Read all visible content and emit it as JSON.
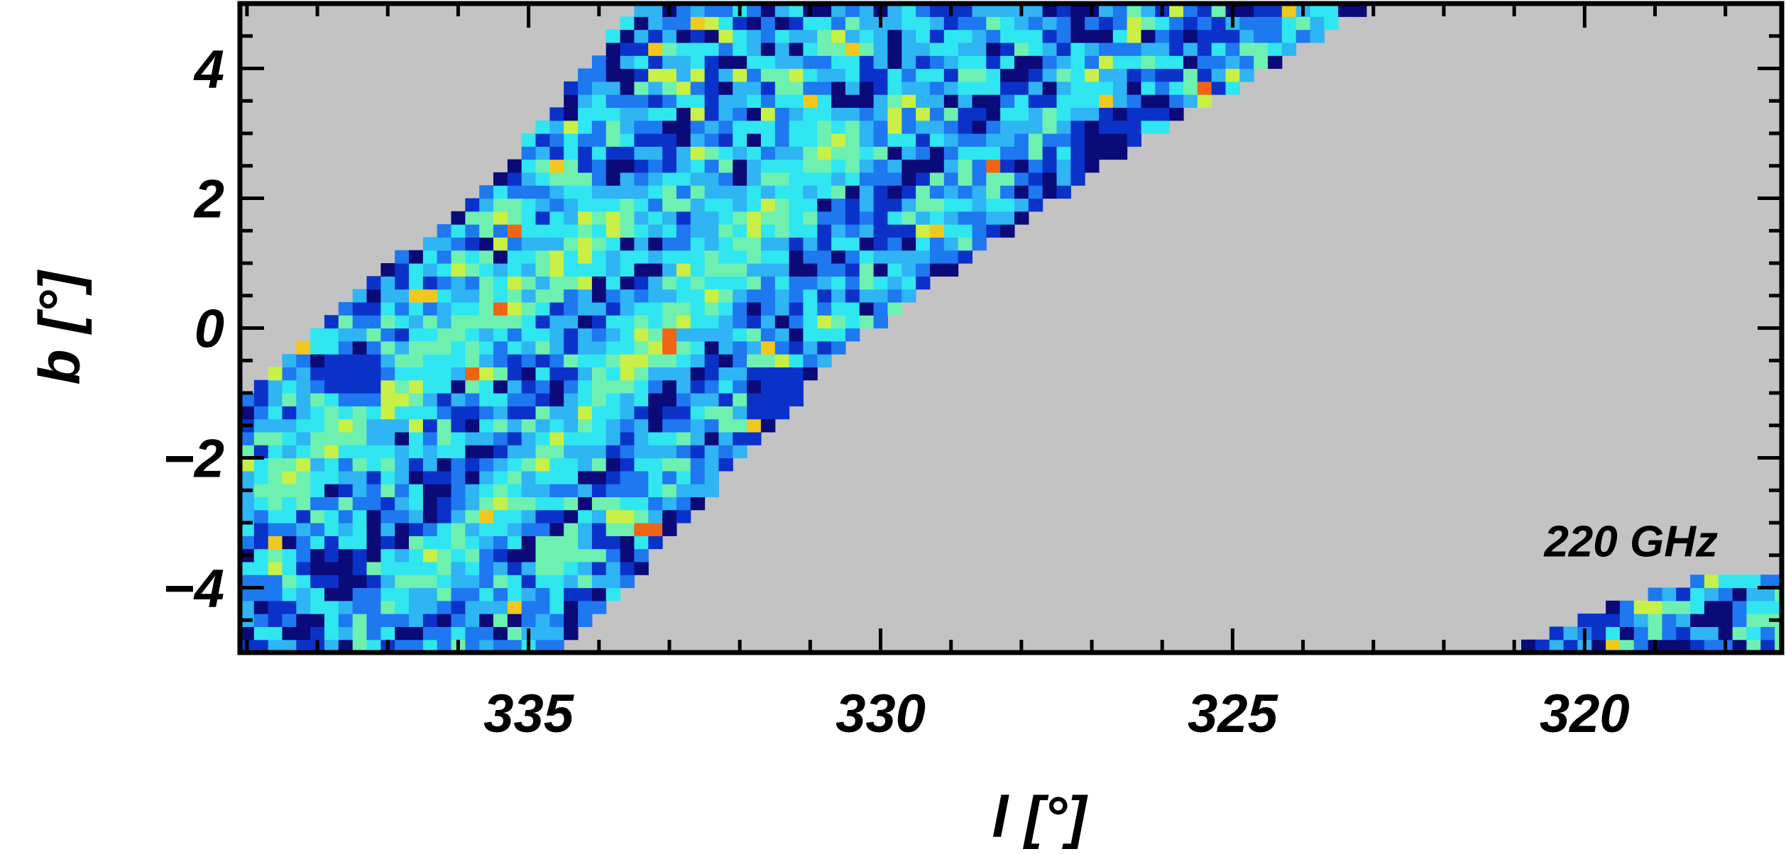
{
  "chart_data": {
    "type": "heatmap",
    "title": "",
    "annotation": "220 GHz",
    "xlabel": "l [°]",
    "ylabel": "b [°]",
    "xlim": [
      339.1,
      317.2
    ],
    "ylim": [
      -5,
      5
    ],
    "x_reversed": true,
    "x_ticks": [
      335,
      330,
      325,
      320
    ],
    "y_ticks": [
      4,
      2,
      0,
      -2,
      -4
    ],
    "x_tick_labels": [
      "335",
      "330",
      "325",
      "320"
    ],
    "y_tick_labels": [
      "4",
      "2",
      "0",
      "−2",
      "−4"
    ],
    "grid": false,
    "mask_color": "#c3c3c3",
    "colormap": [
      "#0a0a78",
      "#0a32c8",
      "#1e78f0",
      "#2fb4f4",
      "#30e6f0",
      "#6ef0b0",
      "#c8f046",
      "#f0c81e",
      "#f06414"
    ],
    "coverage": [
      {
        "name": "main-strip",
        "polygon": [
          [
            339.1,
            -5
          ],
          [
            339.1,
            -1.0
          ],
          [
            335.5,
            2.3
          ],
          [
            333.5,
            4.9
          ],
          [
            323.0,
            5.0
          ],
          [
            327.0,
            2.4
          ],
          [
            330.5,
            -0.3
          ],
          [
            334.5,
            -5
          ]
        ]
      },
      {
        "name": "corner-patch",
        "polygon": [
          [
            321.0,
            -5
          ],
          [
            319.5,
            -4.2
          ],
          [
            318.2,
            -3.8
          ],
          [
            317.2,
            -3.9
          ],
          [
            317.2,
            -5
          ]
        ]
      }
    ],
    "bands": [
      {
        "along": [
          [
            338.6,
            -2.5
          ],
          [
            333.8,
            1.8
          ]
        ],
        "level": 0.78
      },
      {
        "along": [
          [
            333.8,
            -0.5
          ],
          [
            330.6,
            3.0
          ]
        ],
        "level": 0.72
      },
      {
        "along": [
          [
            336.5,
            -4.0
          ],
          [
            332.0,
            1.0
          ]
        ],
        "level": 0.6
      }
    ],
    "cold_spots": [
      {
        "l": 336.1,
        "b": 2.2,
        "level": 0.02
      },
      {
        "l": 335.0,
        "b": 3.6,
        "level": 0.05
      },
      {
        "l": 326.8,
        "b": 2.7,
        "level": 0.02
      },
      {
        "l": 337.5,
        "b": -0.7,
        "level": 0.1
      },
      {
        "l": 331.5,
        "b": -1.0,
        "level": 0.08
      },
      {
        "l": 333.0,
        "b": -3.6,
        "level": 0.1
      }
    ],
    "hot_spots": [
      {
        "l": 331.8,
        "b": -1.5,
        "level": 0.86
      },
      {
        "l": 333.3,
        "b": -3.1,
        "level": 0.96
      },
      {
        "l": 333.0,
        "b": -0.2,
        "level": 0.93
      },
      {
        "l": 336.5,
        "b": 0.5,
        "level": 0.85
      },
      {
        "l": 338.3,
        "b": -0.2,
        "level": 0.85
      }
    ]
  }
}
